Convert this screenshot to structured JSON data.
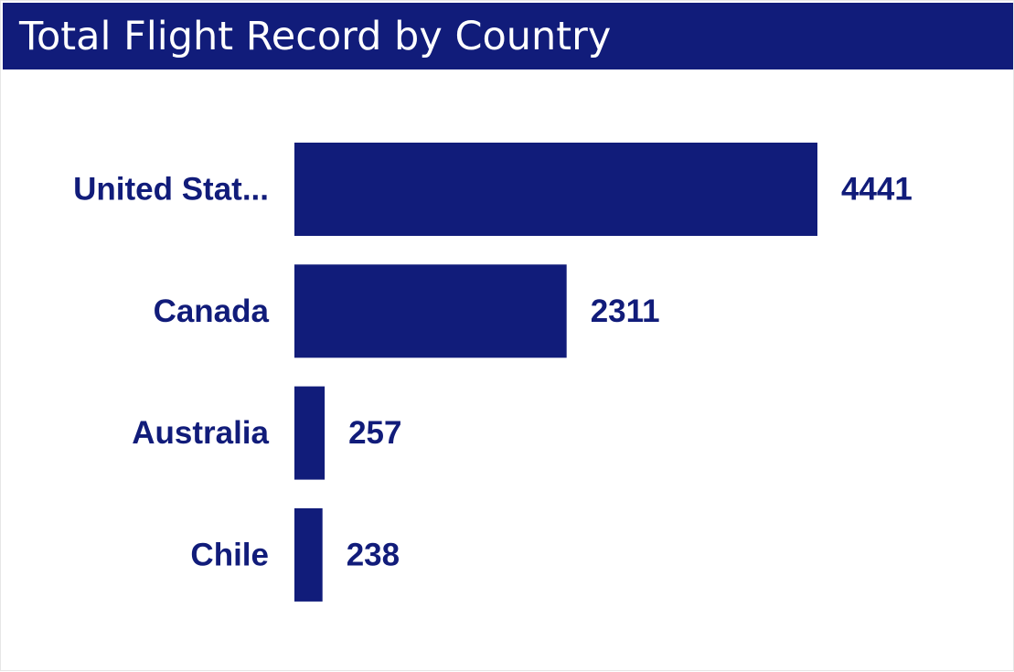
{
  "header": {
    "title": "Total Flight Record by Country"
  },
  "colors": {
    "accent": "#111c7a",
    "title_bar": "#111c7a",
    "text": "#111c7a",
    "background": "#ffffff"
  },
  "chart_data": {
    "type": "bar",
    "orientation": "horizontal",
    "title": "Total Flight Record by Country",
    "categories": [
      "United Stat...",
      "Canada",
      "Australia",
      "Chile"
    ],
    "values": [
      4441,
      2311,
      257,
      238
    ],
    "data_labels": [
      "4441",
      "2311",
      "257",
      "238"
    ],
    "xlim": [
      0,
      4441
    ],
    "grid": false,
    "legend": "none"
  }
}
